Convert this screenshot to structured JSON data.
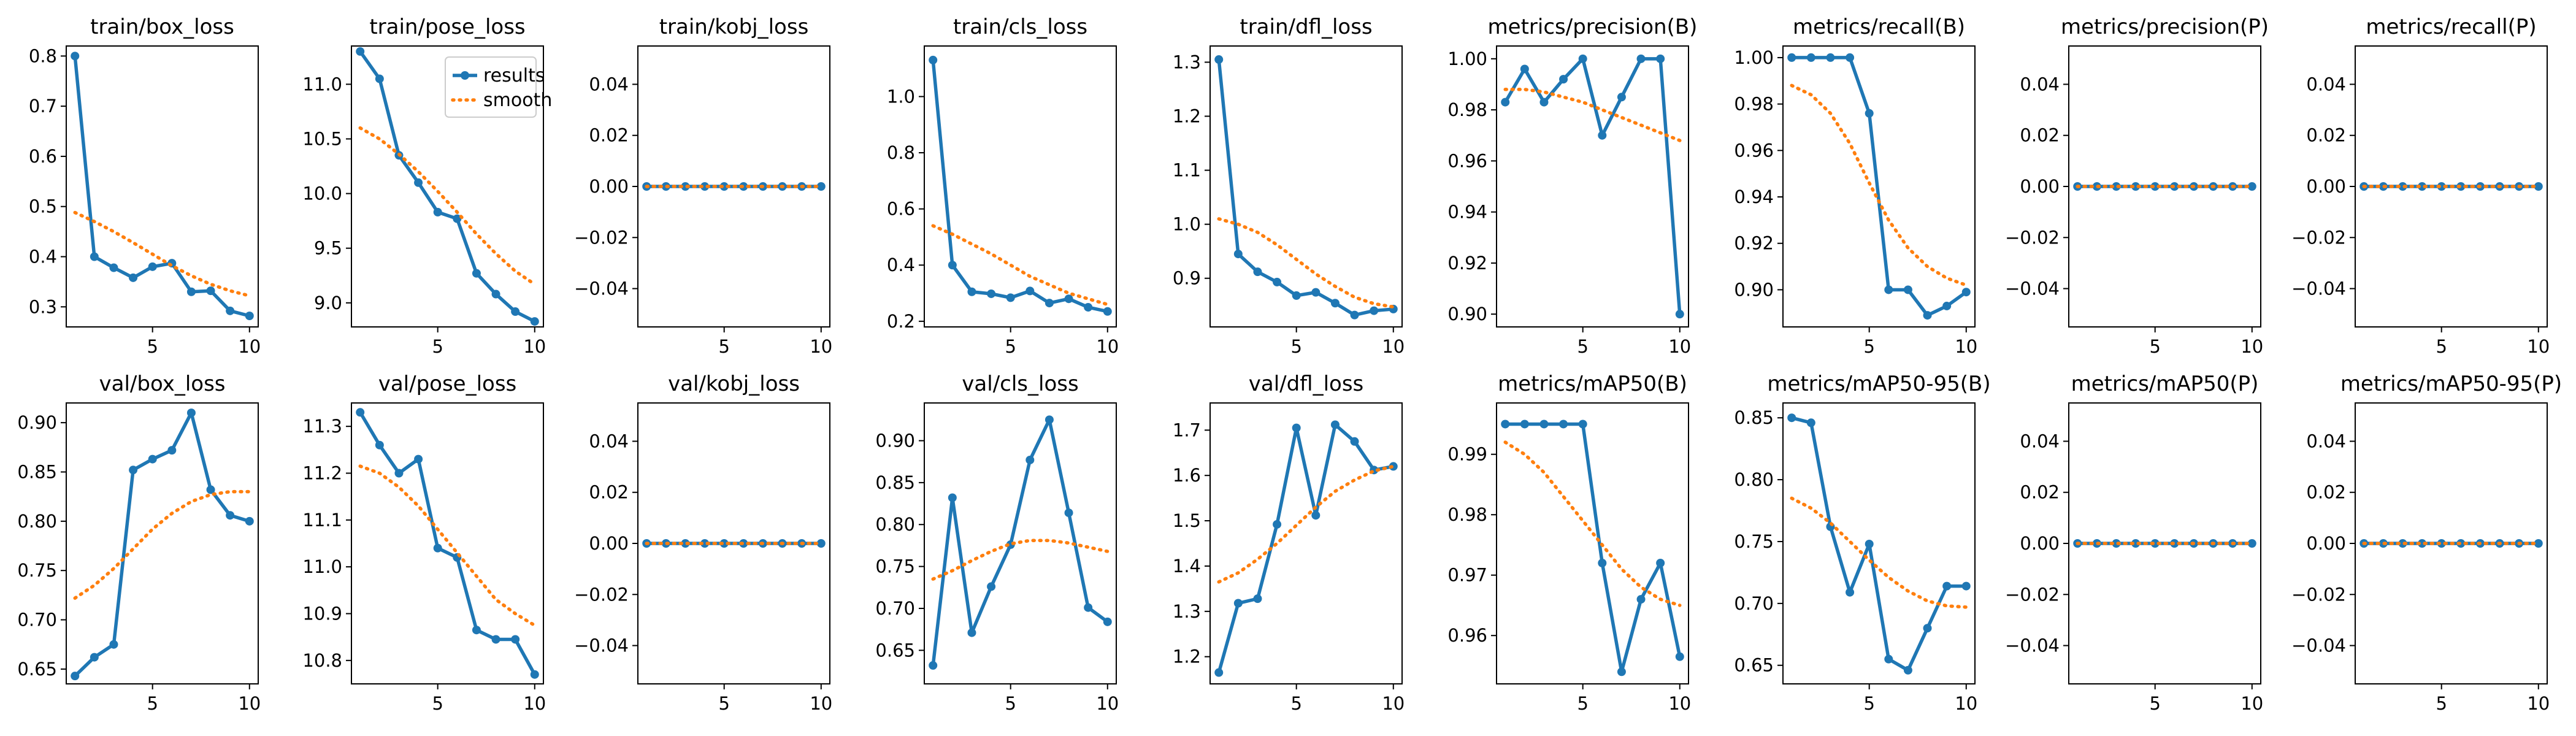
{
  "legend": {
    "results": "results",
    "smooth": "smooth"
  },
  "colors": {
    "results": "#1f77b4",
    "smooth": "#ff7f0e"
  },
  "chart_data": [
    {
      "title": "train/box_loss",
      "type": "line",
      "x": [
        1,
        2,
        3,
        4,
        5,
        6,
        7,
        8,
        9,
        10
      ],
      "ylim": [
        0.26,
        0.82
      ],
      "yticks": [
        0.3,
        0.4,
        0.5,
        0.6,
        0.7,
        0.8
      ],
      "ytick_labels": [
        "0.3",
        "0.4",
        "0.5",
        "0.6",
        "0.7",
        "0.8"
      ],
      "xticks": [
        5,
        10
      ],
      "xtick_labels": [
        "5",
        "10"
      ],
      "series": [
        {
          "values": [
            0.8,
            0.4,
            0.378,
            0.358,
            0.38,
            0.387,
            0.33,
            0.332,
            0.292,
            0.282
          ]
        },
        {
          "values": [
            0.488,
            0.47,
            0.45,
            0.428,
            0.405,
            0.382,
            0.362,
            0.345,
            0.332,
            0.322
          ],
          "style": "smooth"
        }
      ]
    },
    {
      "title": "train/pose_loss",
      "type": "line",
      "x": [
        1,
        2,
        3,
        4,
        5,
        6,
        7,
        8,
        9,
        10
      ],
      "legend": true,
      "ylim": [
        8.78,
        11.35
      ],
      "yticks": [
        9.0,
        9.5,
        10.0,
        10.5,
        11.0
      ],
      "ytick_labels": [
        "9.0",
        "9.5",
        "10.0",
        "10.5",
        "11.0"
      ],
      "xticks": [
        5,
        10
      ],
      "xtick_labels": [
        "5",
        "10"
      ],
      "series": [
        {
          "values": [
            11.3,
            11.05,
            10.35,
            10.1,
            9.83,
            9.77,
            9.27,
            9.08,
            8.92,
            8.83
          ]
        },
        {
          "values": [
            10.6,
            10.5,
            10.36,
            10.2,
            10.02,
            9.83,
            9.63,
            9.45,
            9.29,
            9.17
          ],
          "style": "smooth"
        }
      ]
    },
    {
      "title": "train/kobj_loss",
      "type": "line",
      "x": [
        1,
        2,
        3,
        4,
        5,
        6,
        7,
        8,
        9,
        10
      ],
      "ylim": [
        -0.055,
        0.055
      ],
      "yticks": [
        -0.04,
        -0.02,
        0.0,
        0.02,
        0.04
      ],
      "ytick_labels": [
        "−0.04",
        "−0.02",
        "0.00",
        "0.02",
        "0.04"
      ],
      "xticks": [
        5,
        10
      ],
      "xtick_labels": [
        "5",
        "10"
      ],
      "series": [
        {
          "values": [
            0,
            0,
            0,
            0,
            0,
            0,
            0,
            0,
            0,
            0
          ]
        },
        {
          "values": [
            0,
            0,
            0,
            0,
            0,
            0,
            0,
            0,
            0,
            0
          ],
          "style": "smooth"
        }
      ]
    },
    {
      "title": "train/cls_loss",
      "type": "line",
      "x": [
        1,
        2,
        3,
        4,
        5,
        6,
        7,
        8,
        9,
        10
      ],
      "ylim": [
        0.18,
        1.18
      ],
      "yticks": [
        0.2,
        0.4,
        0.6,
        0.8,
        1.0
      ],
      "ytick_labels": [
        "0.2",
        "0.4",
        "0.6",
        "0.8",
        "1.0"
      ],
      "xticks": [
        5,
        10
      ],
      "xtick_labels": [
        "5",
        "10"
      ],
      "series": [
        {
          "values": [
            1.13,
            0.4,
            0.305,
            0.298,
            0.284,
            0.308,
            0.265,
            0.28,
            0.25,
            0.235
          ]
        },
        {
          "values": [
            0.54,
            0.51,
            0.475,
            0.44,
            0.4,
            0.36,
            0.33,
            0.3,
            0.28,
            0.26
          ],
          "style": "smooth"
        }
      ]
    },
    {
      "title": "train/dfl_loss",
      "type": "line",
      "x": [
        1,
        2,
        3,
        4,
        5,
        6,
        7,
        8,
        9,
        10
      ],
      "ylim": [
        0.81,
        1.33
      ],
      "yticks": [
        0.9,
        1.0,
        1.1,
        1.2,
        1.3
      ],
      "ytick_labels": [
        "0.9",
        "1.0",
        "1.1",
        "1.2",
        "1.3"
      ],
      "xticks": [
        5,
        10
      ],
      "xtick_labels": [
        "5",
        "10"
      ],
      "series": [
        {
          "values": [
            1.305,
            0.945,
            0.912,
            0.893,
            0.868,
            0.874,
            0.854,
            0.832,
            0.84,
            0.843
          ]
        },
        {
          "values": [
            1.01,
            1.0,
            0.985,
            0.962,
            0.935,
            0.908,
            0.885,
            0.865,
            0.853,
            0.847
          ],
          "style": "smooth"
        }
      ]
    },
    {
      "title": "metrics/precision(B)",
      "type": "line",
      "x": [
        1,
        2,
        3,
        4,
        5,
        6,
        7,
        8,
        9,
        10
      ],
      "ylim": [
        0.895,
        1.005
      ],
      "yticks": [
        0.9,
        0.92,
        0.94,
        0.96,
        0.98,
        1.0
      ],
      "ytick_labels": [
        "0.90",
        "0.92",
        "0.94",
        "0.96",
        "0.98",
        "1.00"
      ],
      "xticks": [
        5,
        10
      ],
      "xtick_labels": [
        "5",
        "10"
      ],
      "series": [
        {
          "values": [
            0.983,
            0.996,
            0.983,
            0.992,
            1.0,
            0.97,
            0.985,
            1.0,
            1.0,
            0.9
          ]
        },
        {
          "values": [
            0.988,
            0.988,
            0.987,
            0.985,
            0.983,
            0.98,
            0.977,
            0.974,
            0.971,
            0.968
          ],
          "style": "smooth"
        }
      ]
    },
    {
      "title": "metrics/recall(B)",
      "type": "line",
      "x": [
        1,
        2,
        3,
        4,
        5,
        6,
        7,
        8,
        9,
        10
      ],
      "ylim": [
        0.884,
        1.005
      ],
      "yticks": [
        0.9,
        0.92,
        0.94,
        0.96,
        0.98,
        1.0
      ],
      "ytick_labels": [
        "0.90",
        "0.92",
        "0.94",
        "0.96",
        "0.98",
        "1.00"
      ],
      "xticks": [
        5,
        10
      ],
      "xtick_labels": [
        "5",
        "10"
      ],
      "series": [
        {
          "values": [
            1.0,
            1.0,
            1.0,
            1.0,
            0.976,
            0.9,
            0.9,
            0.889,
            0.893,
            0.899
          ]
        },
        {
          "values": [
            0.988,
            0.984,
            0.976,
            0.963,
            0.946,
            0.93,
            0.918,
            0.91,
            0.905,
            0.902
          ],
          "style": "smooth"
        }
      ]
    },
    {
      "title": "metrics/precision(P)",
      "type": "line",
      "x": [
        1,
        2,
        3,
        4,
        5,
        6,
        7,
        8,
        9,
        10
      ],
      "ylim": [
        -0.055,
        0.055
      ],
      "yticks": [
        -0.04,
        -0.02,
        0.0,
        0.02,
        0.04
      ],
      "ytick_labels": [
        "−0.04",
        "−0.02",
        "0.00",
        "0.02",
        "0.04"
      ],
      "xticks": [
        5,
        10
      ],
      "xtick_labels": [
        "5",
        "10"
      ],
      "series": [
        {
          "values": [
            0,
            0,
            0,
            0,
            0,
            0,
            0,
            0,
            0,
            0
          ]
        },
        {
          "values": [
            0,
            0,
            0,
            0,
            0,
            0,
            0,
            0,
            0,
            0
          ],
          "style": "smooth"
        }
      ]
    },
    {
      "title": "metrics/recall(P)",
      "type": "line",
      "x": [
        1,
        2,
        3,
        4,
        5,
        6,
        7,
        8,
        9,
        10
      ],
      "ylim": [
        -0.055,
        0.055
      ],
      "yticks": [
        -0.04,
        -0.02,
        0.0,
        0.02,
        0.04
      ],
      "ytick_labels": [
        "−0.04",
        "−0.02",
        "0.00",
        "0.02",
        "0.04"
      ],
      "xticks": [
        5,
        10
      ],
      "xtick_labels": [
        "5",
        "10"
      ],
      "series": [
        {
          "values": [
            0,
            0,
            0,
            0,
            0,
            0,
            0,
            0,
            0,
            0
          ]
        },
        {
          "values": [
            0,
            0,
            0,
            0,
            0,
            0,
            0,
            0,
            0,
            0
          ],
          "style": "smooth"
        }
      ]
    },
    {
      "title": "val/box_loss",
      "type": "line",
      "x": [
        1,
        2,
        3,
        4,
        5,
        6,
        7,
        8,
        9,
        10
      ],
      "ylim": [
        0.635,
        0.92
      ],
      "yticks": [
        0.65,
        0.7,
        0.75,
        0.8,
        0.85,
        0.9
      ],
      "ytick_labels": [
        "0.65",
        "0.70",
        "0.75",
        "0.80",
        "0.85",
        "0.90"
      ],
      "xticks": [
        5,
        10
      ],
      "xtick_labels": [
        "5",
        "10"
      ],
      "series": [
        {
          "values": [
            0.643,
            0.662,
            0.675,
            0.852,
            0.863,
            0.872,
            0.91,
            0.832,
            0.806,
            0.8
          ]
        },
        {
          "values": [
            0.722,
            0.735,
            0.752,
            0.772,
            0.792,
            0.808,
            0.82,
            0.827,
            0.83,
            0.83
          ],
          "style": "smooth"
        }
      ]
    },
    {
      "title": "val/pose_loss",
      "type": "line",
      "x": [
        1,
        2,
        3,
        4,
        5,
        6,
        7,
        8,
        9,
        10
      ],
      "ylim": [
        10.75,
        11.35
      ],
      "yticks": [
        10.8,
        10.9,
        11.0,
        11.1,
        11.2,
        11.3
      ],
      "ytick_labels": [
        "10.8",
        "10.9",
        "11.0",
        "11.1",
        "11.2",
        "11.3"
      ],
      "xticks": [
        5,
        10
      ],
      "xtick_labels": [
        "5",
        "10"
      ],
      "series": [
        {
          "values": [
            11.33,
            11.26,
            11.2,
            11.23,
            11.04,
            11.02,
            10.865,
            10.845,
            10.845,
            10.77
          ]
        },
        {
          "values": [
            11.215,
            11.2,
            11.17,
            11.13,
            11.08,
            11.03,
            10.98,
            10.93,
            10.9,
            10.875
          ],
          "style": "smooth"
        }
      ]
    },
    {
      "title": "val/kobj_loss",
      "type": "line",
      "x": [
        1,
        2,
        3,
        4,
        5,
        6,
        7,
        8,
        9,
        10
      ],
      "ylim": [
        -0.055,
        0.055
      ],
      "yticks": [
        -0.04,
        -0.02,
        0.0,
        0.02,
        0.04
      ],
      "ytick_labels": [
        "−0.04",
        "−0.02",
        "0.00",
        "0.02",
        "0.04"
      ],
      "xticks": [
        5,
        10
      ],
      "xtick_labels": [
        "5",
        "10"
      ],
      "series": [
        {
          "values": [
            0,
            0,
            0,
            0,
            0,
            0,
            0,
            0,
            0,
            0
          ]
        },
        {
          "values": [
            0,
            0,
            0,
            0,
            0,
            0,
            0,
            0,
            0,
            0
          ],
          "style": "smooth"
        }
      ]
    },
    {
      "title": "val/cls_loss",
      "type": "line",
      "x": [
        1,
        2,
        3,
        4,
        5,
        6,
        7,
        8,
        9,
        10
      ],
      "ylim": [
        0.61,
        0.945
      ],
      "yticks": [
        0.65,
        0.7,
        0.75,
        0.8,
        0.85,
        0.9
      ],
      "ytick_labels": [
        "0.65",
        "0.70",
        "0.75",
        "0.80",
        "0.85",
        "0.90"
      ],
      "xticks": [
        5,
        10
      ],
      "xtick_labels": [
        "5",
        "10"
      ],
      "series": [
        {
          "values": [
            0.632,
            0.832,
            0.671,
            0.726,
            0.776,
            0.877,
            0.925,
            0.814,
            0.701,
            0.684
          ]
        },
        {
          "values": [
            0.735,
            0.745,
            0.757,
            0.768,
            0.777,
            0.781,
            0.781,
            0.778,
            0.773,
            0.768
          ],
          "style": "smooth"
        }
      ]
    },
    {
      "title": "val/dfl_loss",
      "type": "line",
      "x": [
        1,
        2,
        3,
        4,
        5,
        6,
        7,
        8,
        9,
        10
      ],
      "ylim": [
        1.14,
        1.76
      ],
      "yticks": [
        1.2,
        1.3,
        1.4,
        1.5,
        1.6,
        1.7
      ],
      "ytick_labels": [
        "1.2",
        "1.3",
        "1.4",
        "1.5",
        "1.6",
        "1.7"
      ],
      "xticks": [
        5,
        10
      ],
      "xtick_labels": [
        "5",
        "10"
      ],
      "series": [
        {
          "values": [
            1.165,
            1.318,
            1.328,
            1.492,
            1.705,
            1.512,
            1.712,
            1.675,
            1.612,
            1.62
          ]
        },
        {
          "values": [
            1.365,
            1.385,
            1.415,
            1.45,
            1.49,
            1.53,
            1.565,
            1.59,
            1.61,
            1.62
          ],
          "style": "smooth"
        }
      ]
    },
    {
      "title": "metrics/mAP50(B)",
      "type": "line",
      "x": [
        1,
        2,
        3,
        4,
        5,
        6,
        7,
        8,
        9,
        10
      ],
      "ylim": [
        0.952,
        0.9985
      ],
      "yticks": [
        0.96,
        0.97,
        0.98,
        0.99
      ],
      "ytick_labels": [
        "0.96",
        "0.97",
        "0.98",
        "0.99"
      ],
      "xticks": [
        5,
        10
      ],
      "xtick_labels": [
        "5",
        "10"
      ],
      "series": [
        {
          "values": [
            0.995,
            0.995,
            0.995,
            0.995,
            0.995,
            0.972,
            0.954,
            0.966,
            0.972,
            0.9565
          ]
        },
        {
          "values": [
            0.992,
            0.99,
            0.987,
            0.983,
            0.979,
            0.975,
            0.971,
            0.968,
            0.966,
            0.965
          ],
          "style": "smooth"
        }
      ]
    },
    {
      "title": "metrics/mAP50-95(B)",
      "type": "line",
      "x": [
        1,
        2,
        3,
        4,
        5,
        6,
        7,
        8,
        9,
        10
      ],
      "ylim": [
        0.635,
        0.862
      ],
      "yticks": [
        0.65,
        0.7,
        0.75,
        0.8,
        0.85
      ],
      "ytick_labels": [
        "0.65",
        "0.70",
        "0.75",
        "0.80",
        "0.85"
      ],
      "xticks": [
        5,
        10
      ],
      "xtick_labels": [
        "5",
        "10"
      ],
      "series": [
        {
          "values": [
            0.85,
            0.846,
            0.762,
            0.709,
            0.748,
            0.655,
            0.646,
            0.68,
            0.714,
            0.714
          ]
        },
        {
          "values": [
            0.785,
            0.777,
            0.765,
            0.75,
            0.735,
            0.721,
            0.71,
            0.702,
            0.698,
            0.697
          ],
          "style": "smooth"
        }
      ]
    },
    {
      "title": "metrics/mAP50(P)",
      "type": "line",
      "x": [
        1,
        2,
        3,
        4,
        5,
        6,
        7,
        8,
        9,
        10
      ],
      "ylim": [
        -0.055,
        0.055
      ],
      "yticks": [
        -0.04,
        -0.02,
        0.0,
        0.02,
        0.04
      ],
      "ytick_labels": [
        "−0.04",
        "−0.02",
        "0.00",
        "0.02",
        "0.04"
      ],
      "xticks": [
        5,
        10
      ],
      "xtick_labels": [
        "5",
        "10"
      ],
      "series": [
        {
          "values": [
            0,
            0,
            0,
            0,
            0,
            0,
            0,
            0,
            0,
            0
          ]
        },
        {
          "values": [
            0,
            0,
            0,
            0,
            0,
            0,
            0,
            0,
            0,
            0
          ],
          "style": "smooth"
        }
      ]
    },
    {
      "title": "metrics/mAP50-95(P)",
      "type": "line",
      "x": [
        1,
        2,
        3,
        4,
        5,
        6,
        7,
        8,
        9,
        10
      ],
      "ylim": [
        -0.055,
        0.055
      ],
      "yticks": [
        -0.04,
        -0.02,
        0.0,
        0.02,
        0.04
      ],
      "ytick_labels": [
        "−0.04",
        "−0.02",
        "0.00",
        "0.02",
        "0.04"
      ],
      "xticks": [
        5,
        10
      ],
      "xtick_labels": [
        "5",
        "10"
      ],
      "series": [
        {
          "values": [
            0,
            0,
            0,
            0,
            0,
            0,
            0,
            0,
            0,
            0
          ]
        },
        {
          "values": [
            0,
            0,
            0,
            0,
            0,
            0,
            0,
            0,
            0,
            0
          ],
          "style": "smooth"
        }
      ]
    }
  ]
}
